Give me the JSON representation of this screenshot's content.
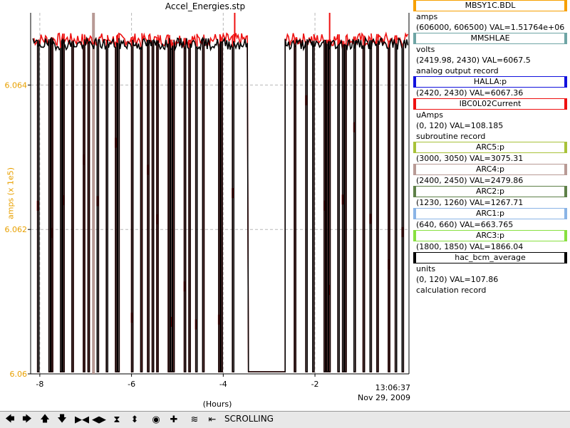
{
  "window": {
    "title": "Accel_Energies.stp"
  },
  "chart_data": {
    "type": "line",
    "title": "Accel_Energies.stp",
    "xlabel": "(Hours)",
    "ylabel": "amps (x 1e5)",
    "xlim": [
      -8.2,
      0.05
    ],
    "ylim": [
      6.06,
      6.065
    ],
    "x_ticks": [
      -8,
      -6,
      -4,
      -2
    ],
    "x_tick_labels": [
      "-8",
      "-6",
      "-4",
      "-2"
    ],
    "y_ticks": [
      6.06,
      6.062,
      6.064
    ],
    "y_tick_labels": [
      "6.06",
      "6.062",
      "6.064"
    ],
    "grid": true,
    "timestamp": [
      "13:06:37",
      "Nov 29, 2009"
    ],
    "baseline": 6.06459,
    "low_level": 6.06003,
    "outage": [
      -3.45,
      -2.65
    ],
    "dropouts": [
      -8.05,
      -7.8,
      -7.75,
      -7.55,
      -7.5,
      -7.3,
      -7.05,
      -6.95,
      -6.75,
      -6.55,
      -6.35,
      -6.3,
      -6.0,
      -5.8,
      -5.65,
      -5.55,
      -5.45,
      -5.2,
      -5.15,
      -5.1,
      -4.85,
      -4.75,
      -4.6,
      -4.45,
      -4.1,
      -4.05,
      -3.8,
      -2.45,
      -2.2,
      -2.05,
      -1.8,
      -1.75,
      -1.7,
      -1.5,
      -1.4,
      -1.35,
      -1.15,
      -0.95,
      -0.8,
      -0.65,
      -0.4,
      -0.25,
      -0.1
    ],
    "spikes": [
      -3.75,
      -1.68
    ],
    "marker_x": -6.83,
    "series": [
      {
        "name": "hac_bcm_average",
        "color": "#000000"
      },
      {
        "name": "IBC0L02Current",
        "color": "#ee1111"
      }
    ]
  },
  "legend": [
    {
      "name": "MBSY1C.BDL",
      "color": "#f7a000",
      "lines": [
        "amps",
        "(606000, 606500)  VAL=1.51764e+06"
      ]
    },
    {
      "name": "MMSHLAE",
      "color": "#6ea5a5",
      "lines": [
        "volts",
        "(2419.98, 2430) VAL=6067.5",
        "analog output record"
      ]
    },
    {
      "name": "HALLA:p",
      "color": "#1111dd",
      "lines": [
        "(2420, 2430) VAL=6067.36"
      ]
    },
    {
      "name": "IBC0L02Current",
      "color": "#ee1111",
      "lines": [
        "uAmps",
        "(0, 120) VAL=108.185",
        "subroutine record"
      ]
    },
    {
      "name": "ARC5:p",
      "color": "#a8c23a",
      "lines": [
        "(3000, 3050) VAL=3075.31"
      ]
    },
    {
      "name": "ARC4:p",
      "color": "#b89a95",
      "lines": [
        "(2400, 2450) VAL=2479.86"
      ]
    },
    {
      "name": "ARC2:p",
      "color": "#5e8048",
      "lines": [
        "(1230, 1260) VAL=1267.71"
      ]
    },
    {
      "name": "ARC1:p",
      "color": "#8ab4e6",
      "lines": [
        "(640, 660) VAL=663.765"
      ]
    },
    {
      "name": "ARC3:p",
      "color": "#88e040",
      "lines": [
        "(1800, 1850) VAL=1866.04"
      ]
    },
    {
      "name": "hac_bcm_average",
      "color": "#000000",
      "lines": [
        "units",
        "(0, 120) VAL=107.86",
        "calculation record"
      ]
    }
  ],
  "toolbar": {
    "status": "SCROLLING",
    "buttons": [
      "pan-left",
      "pan-right",
      "pan-up",
      "pan-down",
      "zoom-in-x",
      "zoom-out-x",
      "zoom-in-y",
      "zoom-out-y",
      "auto-scale",
      "add-pv",
      "config",
      "scroll-toggle"
    ]
  }
}
